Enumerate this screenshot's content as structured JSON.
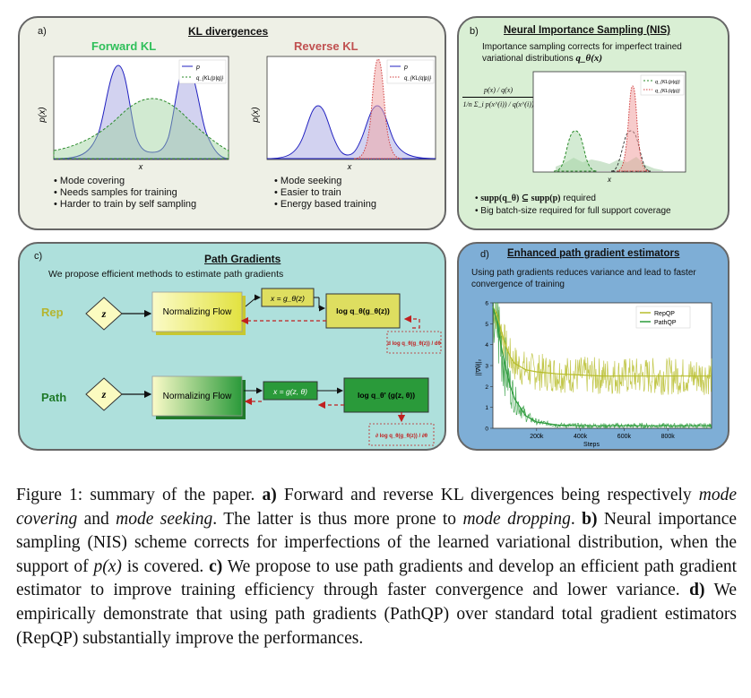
{
  "panel_a": {
    "label": "a)",
    "title": "KL divergences",
    "forward_title": "Forward KL",
    "reverse_title": "Reverse KL",
    "ylabel": "p(x)",
    "xlabel": "x",
    "legend_p": "p",
    "legend_q": "q_{KL(p|q)}",
    "legend_q_rev": "q_{KL(q|p)}",
    "forward_bullets": [
      "Mode covering",
      "Needs samples for training",
      "Harder to train by self sampling"
    ],
    "reverse_bullets": [
      "Mode seeking",
      "Easier to train",
      "Energy based training"
    ],
    "colors": {
      "forward": "#2fbf5a",
      "reverse": "#c05050",
      "bg": "#eef0e6"
    }
  },
  "panel_b": {
    "label": "b)",
    "title": "Neural Importance Sampling (NIS)",
    "intro_line1": "Importance sampling corrects for imperfect trained",
    "intro_line2": "variational distributions",
    "intro_math": "q_θ(x)",
    "weight_num": "p(x) / q(x)",
    "weight_den": "1/n Σ_i p(x^(i)) / q(x^(i))",
    "xlabel": "x",
    "legend_a": "q_{KL(p|q)}",
    "legend_b": "q_{KL(q|p)}",
    "bullet1_math": "supp(q_θ) ⊆ supp(p)",
    "bullet1_text": "required",
    "bullet2": "Big batch-size required for full support coverage",
    "colors": {
      "bg": "#d9efd4"
    }
  },
  "panel_c": {
    "label": "c)",
    "title": "Path Gradients",
    "intro": "We propose efficient methods to estimate path gradients",
    "rep_label": "Rep",
    "path_label": "Path",
    "z": "z",
    "flow_label": "Normalizing Flow",
    "rep_x": "x = g_θ(z)",
    "rep_logq": "log q_θ(g_θ(z))",
    "rep_grad": "d log q_θ(g_θ(z)) / dθ",
    "path_x": "x = g(z, θ)",
    "path_logq": "log q_θ' (g(z, θ))",
    "path_grad": "∂ log q_θ(g_θ(z)) / ∂θ",
    "colors": {
      "bg": "#aee0dc",
      "rep": "#b5b530",
      "path": "#1f7a2a"
    }
  },
  "panel_d": {
    "label": "d)",
    "title": "Enhanced path gradient estimators",
    "intro_line1": "Using path gradients reduces variance and lead to faster",
    "intro_line2": "convergence of training",
    "colors": {
      "bg": "#7eaed6"
    }
  },
  "chart_data": {
    "type": "line",
    "title": "",
    "xlabel": "Steps",
    "ylabel": "||∇θ||₂",
    "xlim": [
      0,
      1000000
    ],
    "ylim": [
      0,
      6
    ],
    "xticks": [
      "200k",
      "400k",
      "600k",
      "800k"
    ],
    "yticks": [
      "0",
      "1",
      "2",
      "3",
      "4",
      "5",
      "6"
    ],
    "legend_placement": "top-right",
    "series": [
      {
        "name": "RepQP",
        "color": "#b7bd2c",
        "x": [
          0,
          20000,
          40000,
          60000,
          80000,
          100000,
          150000,
          200000,
          300000,
          400000,
          500000,
          600000,
          700000,
          800000,
          900000,
          1000000
        ],
        "y": [
          5.8,
          5.4,
          4.6,
          3.9,
          3.4,
          3.1,
          2.8,
          2.7,
          2.6,
          2.55,
          2.5,
          2.5,
          2.5,
          2.5,
          2.5,
          2.5
        ]
      },
      {
        "name": "PathQP",
        "color": "#2a9a3a",
        "x": [
          0,
          20000,
          40000,
          60000,
          80000,
          100000,
          150000,
          200000,
          300000,
          400000,
          500000,
          600000,
          700000,
          800000,
          900000,
          1000000
        ],
        "y": [
          5.8,
          5.0,
          3.8,
          2.8,
          2.0,
          1.4,
          0.6,
          0.3,
          0.15,
          0.12,
          0.12,
          0.12,
          0.12,
          0.12,
          0.12,
          0.12
        ]
      }
    ]
  },
  "caption": {
    "figure_label": "Figure 1:",
    "lead": "summary of the paper.",
    "a_label": "a)",
    "a_text1": "Forward and reverse KL divergences being respectively",
    "a_em1": "mode covering",
    "a_and": "and",
    "a_em2": "mode seeking",
    "a_text2": ". The latter is thus more prone to",
    "a_em3": "mode dropping",
    "a_end": ".",
    "b_label": "b)",
    "b_text": "Neural importance sampling (NIS) scheme corrects for imperfections of the learned variational distribution, when the support of",
    "b_math": "p(x)",
    "b_end": "is covered.",
    "c_label": "c)",
    "c_text": "We propose to use path gradients and develop an efficient path gradient estimator to improve training efficiency through faster convergence and lower variance.",
    "d_label": "d)",
    "d_text": "We empirically demonstrate that using path gradients (PathQP) over standard total gradient estimators (RepQP) substantially improve the performances."
  }
}
